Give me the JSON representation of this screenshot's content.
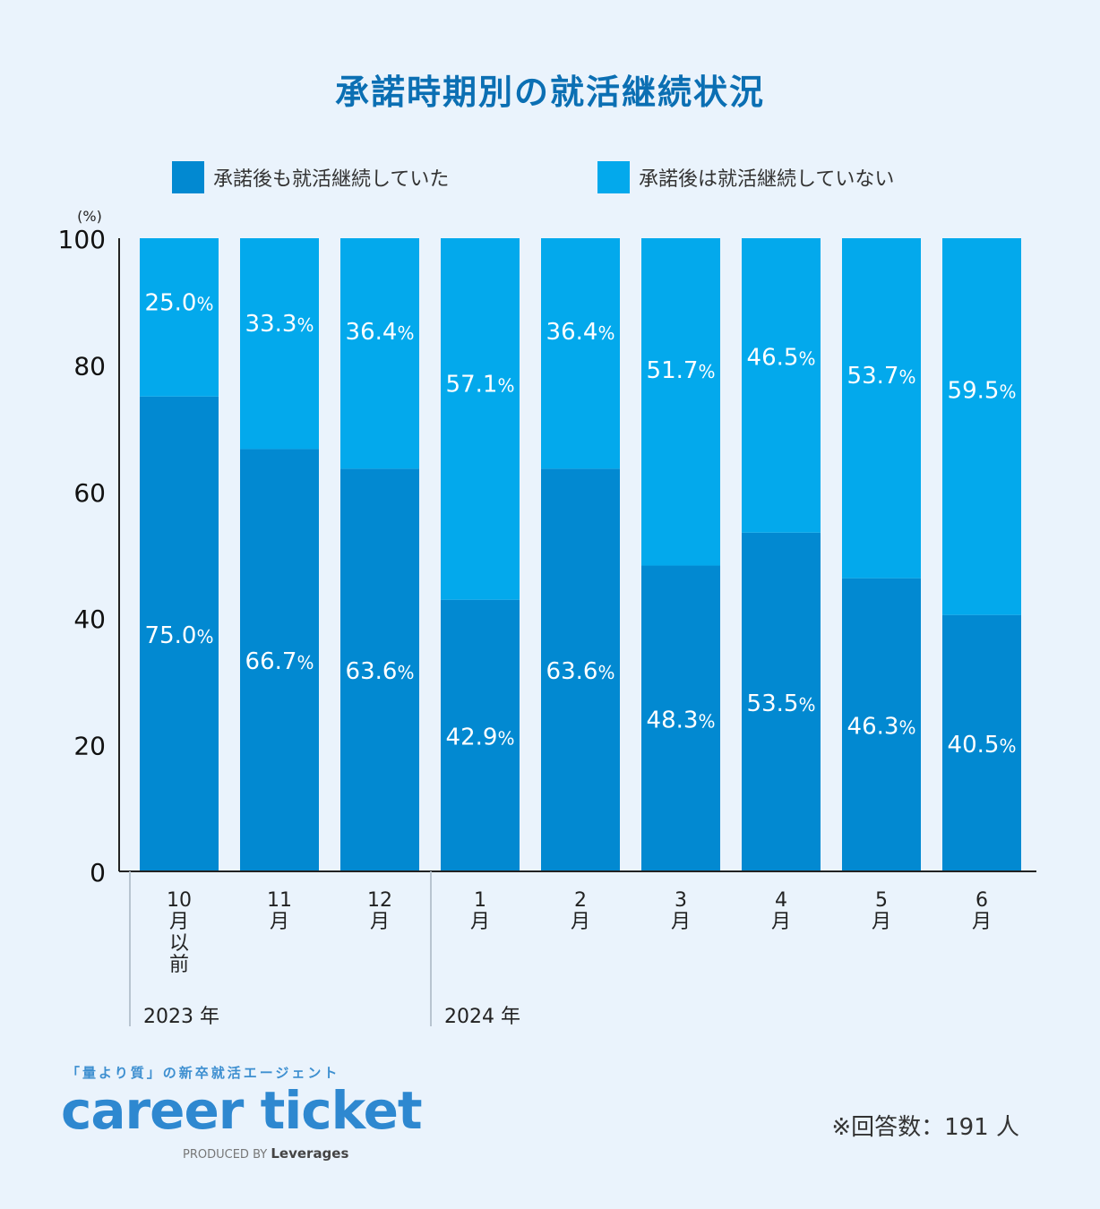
{
  "chart_data": {
    "type": "bar",
    "stacked": true,
    "title": "承諾時期別の就活継続状況",
    "yunit": "(%)",
    "ylim": [
      0,
      100
    ],
    "yticks": [
      0,
      20,
      40,
      60,
      80,
      100
    ],
    "categories": [
      [
        "10",
        "月",
        "以",
        "前"
      ],
      [
        "11",
        "月"
      ],
      [
        "12",
        "月"
      ],
      [
        "1",
        "月"
      ],
      [
        "2",
        "月"
      ],
      [
        "3",
        "月"
      ],
      [
        "4",
        "月"
      ],
      [
        "5",
        "月"
      ],
      [
        "6",
        "月"
      ]
    ],
    "series": [
      {
        "name": "承諾後も就活継続していた",
        "color": "#0289d1",
        "values": [
          75.0,
          66.7,
          63.6,
          42.9,
          63.6,
          48.3,
          53.5,
          46.3,
          40.5
        ]
      },
      {
        "name": "承諾後は就活継続していない",
        "color": "#03a9ec",
        "values": [
          25.0,
          33.3,
          36.4,
          57.1,
          36.4,
          51.7,
          46.5,
          53.7,
          59.5
        ]
      }
    ],
    "groups": [
      {
        "label": "2023 年",
        "start": 0,
        "end": 2
      },
      {
        "label": "2024 年",
        "start": 3,
        "end": 8
      }
    ],
    "legend_position": "top",
    "grid": false
  },
  "brand": {
    "tagline": "「量より質」の新卒就活エージェント",
    "name": "career ticket",
    "produced_by": "PRODUCED BY",
    "company": "Leverages"
  },
  "footnote": "※回答数：191 人"
}
